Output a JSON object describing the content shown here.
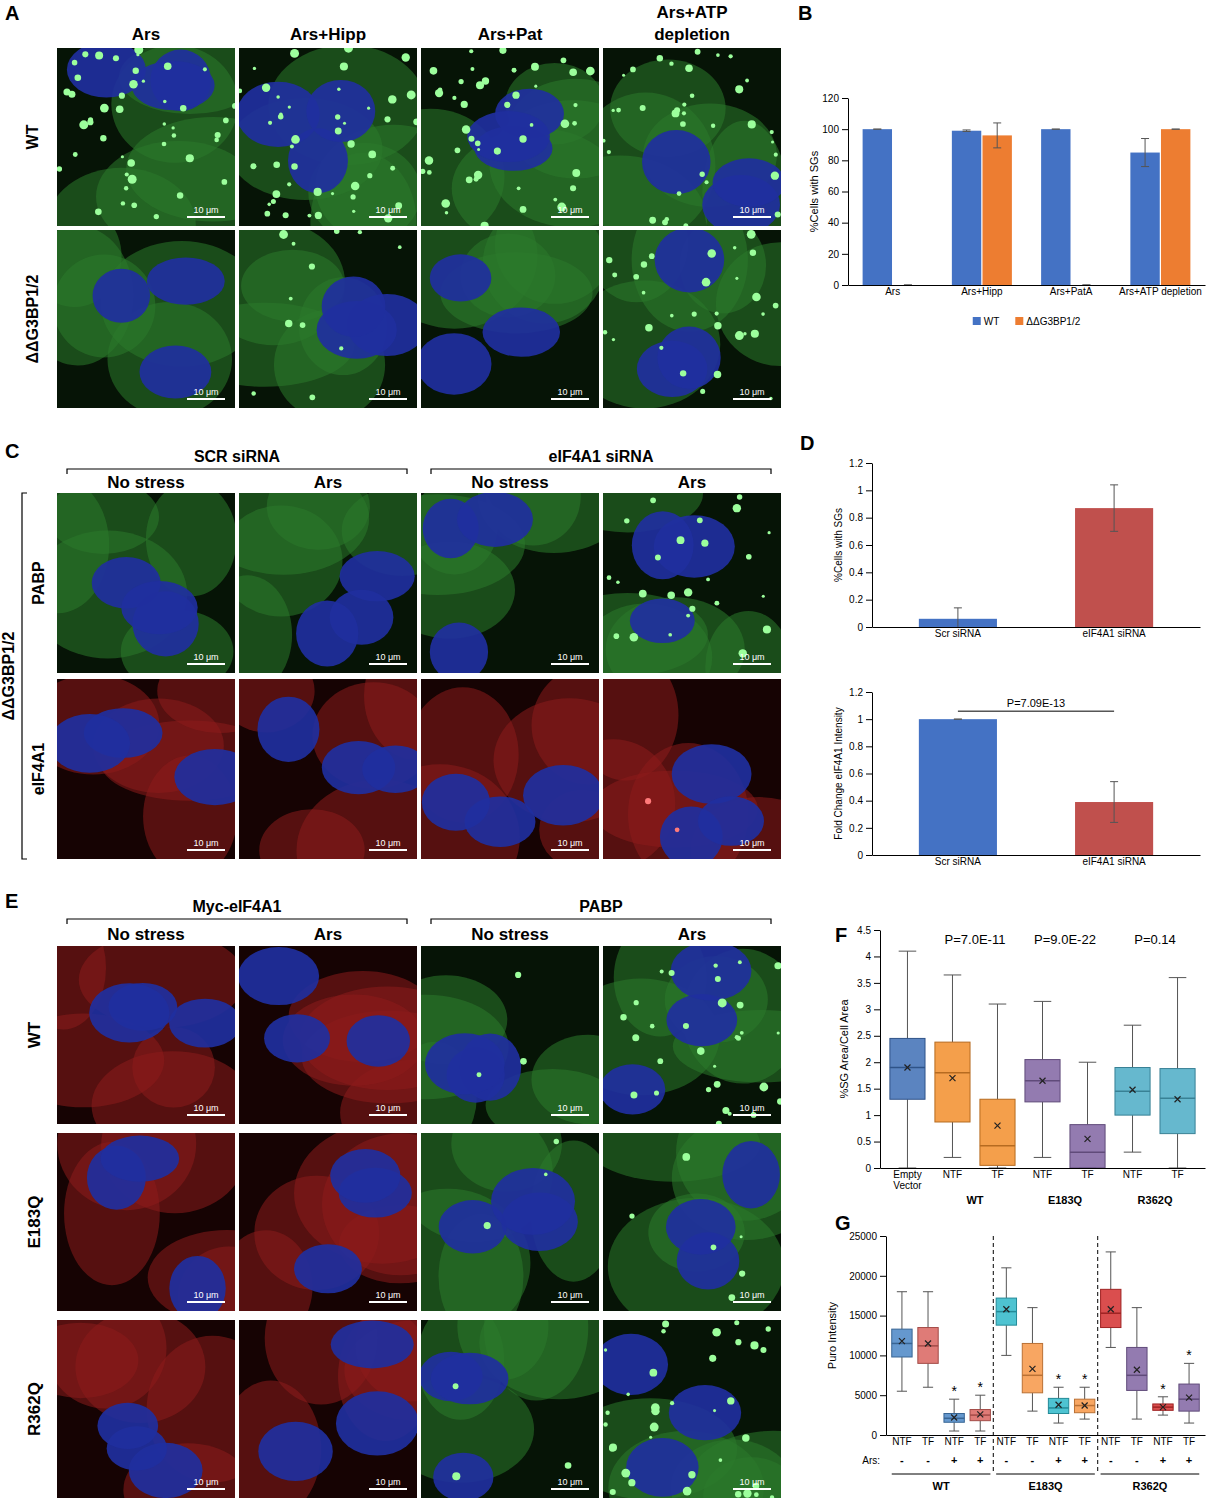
{
  "figure": {
    "A": {
      "letter": "A",
      "columns": [
        "Ars",
        "Ars+Hipp",
        "Ars+Pat",
        "Ars+ATP depletion"
      ],
      "rows": [
        "WT",
        "ΔΔG3BP1/2"
      ]
    },
    "C": {
      "letter": "C",
      "groups": [
        "SCR  siRNA",
        "eIF4A1 siRNA"
      ],
      "columns": [
        "No stress",
        "Ars",
        "No stress",
        "Ars"
      ],
      "side_label": "ΔΔG3BP1/2",
      "rows": [
        "PABP",
        "eIF4A1"
      ]
    },
    "E": {
      "letter": "E",
      "groups": [
        "Myc-eIF4A1",
        "PABP"
      ],
      "columns": [
        "No stress",
        "Ars",
        "No stress",
        "Ars"
      ],
      "rows": [
        "WT",
        "E183Q",
        "R362Q"
      ]
    },
    "scale_bar": "10 μm"
  },
  "chart_data": [
    {
      "panel": "B",
      "type": "bar",
      "categories": [
        "Ars",
        "Ars+Hipp",
        "Ars+PatA",
        "Ars+ATP depletion"
      ],
      "series": [
        {
          "name": "WT",
          "color": "#4472c4",
          "values": [
            100,
            99,
            100,
            85
          ],
          "errors": [
            0,
            0.5,
            0,
            9
          ]
        },
        {
          "name": "ΔΔG3BP1/2",
          "color": "#ed7d31",
          "values": [
            0,
            96,
            0,
            100
          ],
          "errors": [
            0,
            8,
            0,
            0
          ]
        }
      ],
      "y_label": "%Cells with SGs",
      "ylim": [
        0,
        120
      ],
      "yticks": [
        0,
        20,
        40,
        60,
        80,
        100,
        120
      ],
      "legend": "bottom"
    },
    {
      "panel": "D",
      "type": "bar",
      "categories": [
        "Scr siRNA",
        "eIF4A1 siRNA"
      ],
      "values": [
        0.06,
        0.87
      ],
      "errors": [
        0.08,
        0.17
      ],
      "colors": [
        "#4472c4",
        "#c0504d"
      ],
      "y_label": "%Cells with SGs",
      "ylim": [
        0,
        1.2
      ],
      "yticks": [
        0,
        0.2,
        0.4,
        0.6,
        0.8,
        1,
        1.2
      ]
    },
    {
      "type": "bar",
      "categories": [
        "Scr siRNA",
        "eIF4A1 siRNA"
      ],
      "values": [
        1,
        0.39
      ],
      "errors": [
        0,
        0.15
      ],
      "colors": [
        "#4472c4",
        "#c0504d"
      ],
      "y_label": "Fold Change eIF4A1 Intensity",
      "ylim": [
        0,
        1.2
      ],
      "yticks": [
        0,
        0.2,
        0.4,
        0.6,
        0.8,
        1,
        1.2
      ],
      "annotations": [
        {
          "text": "P=7.09E-13",
          "categories": [
            0,
            1
          ]
        }
      ]
    },
    {
      "panel": "F",
      "type": "box",
      "categories": [
        "Empty Vector",
        "NTF",
        "TF",
        "NTF",
        "TF",
        "NTF",
        "TF"
      ],
      "groups": [
        {
          "label": "WT",
          "categories": [
            1,
            2
          ]
        },
        {
          "label": "E183Q",
          "categories": [
            3,
            4
          ]
        },
        {
          "label": "R362Q",
          "categories": [
            5,
            6
          ]
        }
      ],
      "boxes": [
        {
          "min": 0,
          "q1": 1.3,
          "median": 1.9,
          "q3": 2.45,
          "max": 4.1,
          "mean": 1.9
        },
        {
          "min": 0.2,
          "q1": 0.87,
          "median": 1.8,
          "q3": 2.38,
          "max": 3.65,
          "mean": 1.7
        },
        {
          "min": 0,
          "q1": 0.05,
          "median": 0.42,
          "q3": 1.3,
          "max": 3.1,
          "mean": 0.8
        },
        {
          "min": 0.2,
          "q1": 1.25,
          "median": 1.65,
          "q3": 2.05,
          "max": 3.15,
          "mean": 1.65
        },
        {
          "min": 0,
          "q1": 0,
          "median": 0.3,
          "q3": 0.82,
          "max": 2.0,
          "mean": 0.55
        },
        {
          "min": 0.3,
          "q1": 1.0,
          "median": 1.45,
          "q3": 1.9,
          "max": 2.7,
          "mean": 1.48
        },
        {
          "min": 0,
          "q1": 0.65,
          "median": 1.32,
          "q3": 1.88,
          "max": 3.6,
          "mean": 1.3
        }
      ],
      "colors": [
        "#3e6fb5",
        "#f28e2b",
        "#f28e2b",
        "#8064a2",
        "#8064a2",
        "#4bacc6",
        "#4bacc6"
      ],
      "y_label": "%SG Area/Cell Area",
      "ylim": [
        0,
        4.5
      ],
      "yticks": [
        0,
        0.5,
        1,
        1.5,
        2,
        2.5,
        3,
        3.5,
        4,
        4.5
      ],
      "annotations": [
        {
          "text": "P=7.0E-11",
          "categories": [
            1,
            2
          ]
        },
        {
          "text": "P=9.0E-22",
          "categories": [
            3,
            4
          ]
        },
        {
          "text": "P=0.14",
          "categories": [
            5,
            6
          ]
        }
      ]
    },
    {
      "panel": "G",
      "type": "box",
      "categories": [
        "NTF",
        "TF",
        "NTF",
        "TF",
        "NTF",
        "TF",
        "NTF",
        "TF",
        "NTF",
        "TF",
        "NTF",
        "TF"
      ],
      "row_label": "Ars:",
      "row_values": [
        "-",
        "-",
        "+",
        "+",
        "-",
        "-",
        "+",
        "+",
        "-",
        "-",
        "+",
        "+"
      ],
      "groups": [
        {
          "label": "WT",
          "categories": [
            0,
            3
          ]
        },
        {
          "label": "E183Q",
          "categories": [
            4,
            7
          ]
        },
        {
          "label": "R362Q",
          "categories": [
            8,
            11
          ]
        }
      ],
      "boxes": [
        {
          "min": 5500,
          "q1": 9800,
          "median": 11500,
          "q3": 13300,
          "max": 18000,
          "mean": 11800
        },
        {
          "min": 6000,
          "q1": 9000,
          "median": 11200,
          "q3": 13500,
          "max": 18000,
          "mean": 11500
        },
        {
          "min": 500,
          "q1": 1600,
          "median": 2100,
          "q3": 2700,
          "max": 4500,
          "mean": 2200
        },
        {
          "min": 500,
          "q1": 1800,
          "median": 2500,
          "q3": 3200,
          "max": 5000,
          "mean": 2600
        },
        {
          "min": 10000,
          "q1": 13800,
          "median": 15500,
          "q3": 17200,
          "max": 21000,
          "mean": 15800
        },
        {
          "min": 3000,
          "q1": 5300,
          "median": 7500,
          "q3": 11500,
          "max": 16000,
          "mean": 8300
        },
        {
          "min": 1500,
          "q1": 2700,
          "median": 3400,
          "q3": 4600,
          "max": 6000,
          "mean": 3800
        },
        {
          "min": 2000,
          "q1": 2800,
          "median": 3700,
          "q3": 4500,
          "max": 6000,
          "mean": 3700
        },
        {
          "min": 11000,
          "q1": 13500,
          "median": 15300,
          "q3": 18300,
          "max": 23000,
          "mean": 15800
        },
        {
          "min": 2000,
          "q1": 5600,
          "median": 7500,
          "q3": 11000,
          "max": 16000,
          "mean": 8200
        },
        {
          "min": 2500,
          "q1": 3100,
          "median": 3500,
          "q3": 3900,
          "max": 4800,
          "mean": 3500
        },
        {
          "min": 1500,
          "q1": 3000,
          "median": 4500,
          "q3": 6400,
          "max": 9000,
          "mean": 4700
        }
      ],
      "colors": [
        "#4a86c5",
        "#d9645f",
        "#4a86c5",
        "#d9645f",
        "#2fb8c9",
        "#f79646",
        "#2fb8c9",
        "#f79646",
        "#d32f2f",
        "#8064a2",
        "#d32f2f",
        "#8064a2"
      ],
      "y_label": "Puro Intensity",
      "ylim": [
        0,
        25000
      ],
      "yticks": [
        0,
        5000,
        10000,
        15000,
        20000,
        25000
      ],
      "annotations": [
        {
          "text": "*",
          "categories": [
            2
          ]
        },
        {
          "text": "*",
          "categories": [
            3
          ]
        },
        {
          "text": "*",
          "categories": [
            6
          ]
        },
        {
          "text": "*",
          "categories": [
            7
          ]
        },
        {
          "text": "*",
          "categories": [
            10
          ]
        },
        {
          "text": "*",
          "categories": [
            11
          ]
        }
      ]
    }
  ]
}
